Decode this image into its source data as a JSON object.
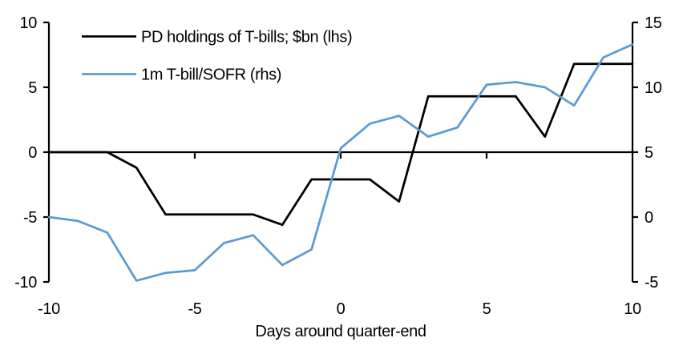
{
  "chart_data": {
    "type": "line",
    "title": "",
    "xlabel": "Days around quarter-end",
    "x": [
      -10,
      -9,
      -8,
      -7,
      -6,
      -5,
      -4,
      -3,
      -2,
      -1,
      0,
      1,
      2,
      3,
      4,
      5,
      6,
      7,
      8,
      9,
      10
    ],
    "series": [
      {
        "name": "PD holdings of T-bills; $bn (lhs)",
        "axis": "left",
        "color": "#000000",
        "values": [
          0,
          0,
          0,
          -1.2,
          -4.8,
          -4.8,
          -4.8,
          -4.8,
          -5.6,
          -2.1,
          -2.1,
          -2.1,
          -3.8,
          4.3,
          4.3,
          4.3,
          4.3,
          1.2,
          6.8,
          6.8,
          6.8
        ]
      },
      {
        "name": "1m T-bill/SOFR (rhs)",
        "axis": "right",
        "color": "#5B9BD5",
        "values": [
          0.0,
          -0.3,
          -1.2,
          -4.9,
          -4.3,
          -4.1,
          -2.0,
          -1.4,
          -3.7,
          -2.5,
          5.3,
          7.2,
          7.8,
          6.2,
          6.9,
          10.2,
          10.4,
          10.0,
          8.6,
          12.3,
          13.3
        ]
      }
    ],
    "left_axis": {
      "min": -10,
      "max": 10,
      "tick_labels": [
        "10",
        "5",
        "0",
        "-5",
        "-10"
      ],
      "tick_values": [
        10,
        5,
        0,
        -5,
        -10
      ]
    },
    "right_axis": {
      "min": -5,
      "max": 15,
      "tick_labels": [
        "15",
        "10",
        "5",
        "0",
        "-5"
      ],
      "tick_values": [
        15,
        10,
        5,
        0,
        -5
      ]
    },
    "x_axis": {
      "min": -10,
      "max": 10,
      "tick_labels": [
        "-10",
        "-5",
        "0",
        "5",
        "10"
      ],
      "tick_values": [
        -10,
        -5,
        0,
        5,
        10
      ]
    },
    "legend": {
      "entries": [
        "PD holdings of T-bills; $bn (lhs)",
        "1m T-bill/SOFR (rhs)"
      ],
      "position": "top-left"
    },
    "grid": "off",
    "zero_line": true,
    "axis_color": "#000000",
    "background_color": "#ffffff"
  }
}
